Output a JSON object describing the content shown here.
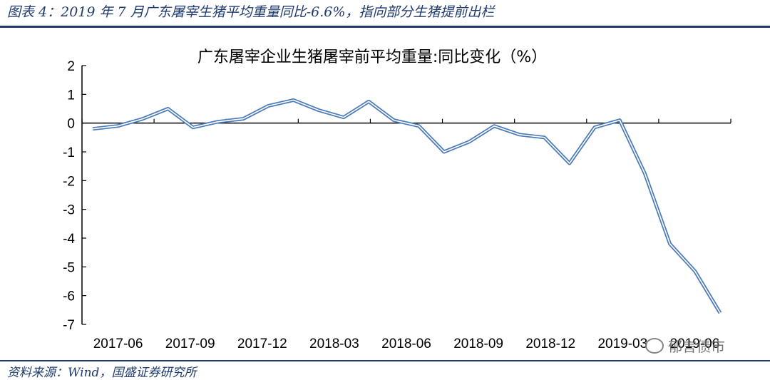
{
  "caption": "图表 4：2019 年 7 月广东屠宰生猪平均重量同比-6.6%，指向部分生猪提前出栏",
  "source": "资料来源：Wind，国盛证券研究所",
  "watermark": "郁言债市",
  "colors": {
    "line": "#4a7ab8",
    "rule": "#1f3b6e",
    "text": "#000000"
  },
  "chart_data": {
    "type": "line",
    "title": "广东屠宰企业生猪屠宰前平均重量:同比变化（%）",
    "xlabel": "",
    "ylabel": "",
    "ylim": [
      -7,
      2
    ],
    "yticks": [
      2,
      1,
      0,
      -1,
      -2,
      -3,
      -4,
      -5,
      -6,
      -7
    ],
    "x_tick_labels": [
      "2017-06",
      "2017-09",
      "2017-12",
      "2018-03",
      "2018-06",
      "2018-09",
      "2018-12",
      "2019-03",
      "2019-06"
    ],
    "grid": false,
    "legend": "none",
    "series": [
      {
        "values": [
          -0.2,
          -0.1,
          0.15,
          0.5,
          -0.15,
          0.05,
          0.15,
          0.6,
          0.8,
          0.45,
          0.2,
          0.75,
          0.1,
          -0.1,
          -1.0,
          -0.65,
          -0.1,
          -0.4,
          -0.5,
          -1.4,
          -0.15,
          0.1,
          -1.75,
          -4.2,
          -5.15,
          -6.6
        ]
      }
    ]
  }
}
